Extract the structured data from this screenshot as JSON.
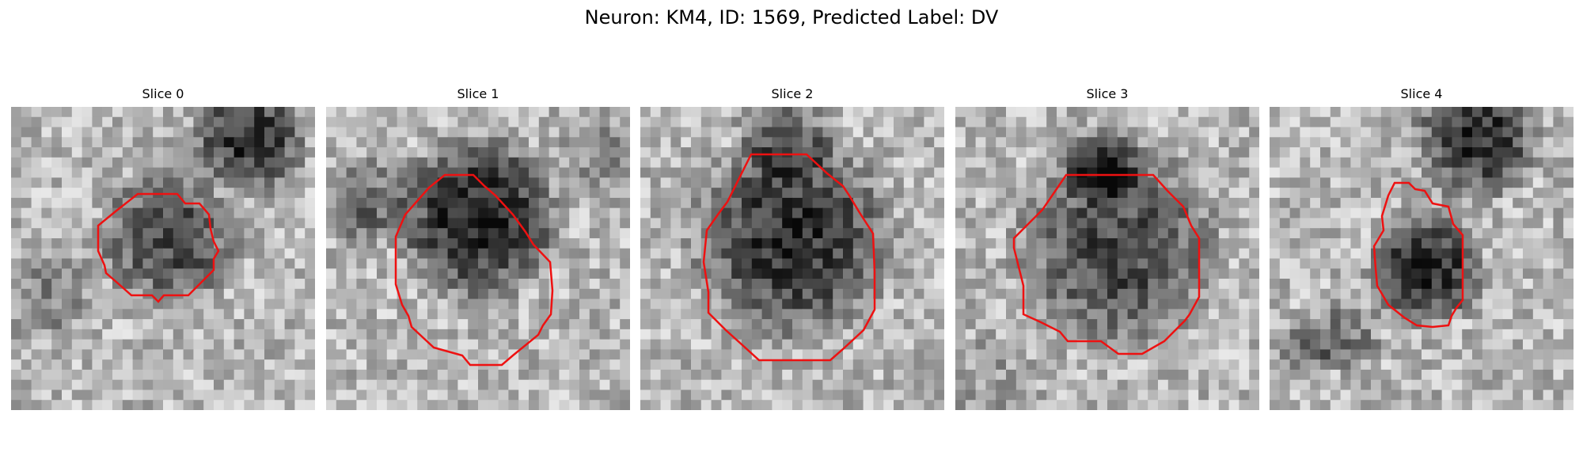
{
  "figure": {
    "title": "Neuron: KM4, ID: 1569, Predicted Label: DV",
    "panels": [
      {
        "title": "Slice 0"
      },
      {
        "title": "Slice 1"
      },
      {
        "title": "Slice 2"
      },
      {
        "title": "Slice 3"
      },
      {
        "title": "Slice 4"
      }
    ]
  },
  "colors": {
    "contour": "#ee1111",
    "background": "#ffffff"
  }
}
